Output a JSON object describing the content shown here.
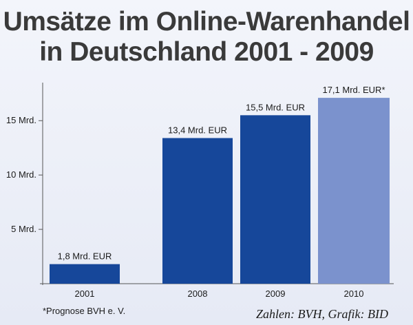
{
  "title": {
    "line1": "Umsätze im Online-Warenhandel",
    "line2": "in Deutschland 2001 - 2009"
  },
  "chart_data": {
    "type": "bar",
    "categories": [
      "2001",
      "2008",
      "2009",
      "2010"
    ],
    "values": [
      1.8,
      13.4,
      15.5,
      17.1
    ],
    "value_labels": [
      "1,8 Mrd. EUR",
      "13,4 Mrd. EUR",
      "15,5 Mrd. EUR",
      "17,1 Mrd. EUR*"
    ],
    "ylim": [
      0,
      18.5
    ],
    "yticks": [
      {
        "value": 5,
        "label": "5 Mrd."
      },
      {
        "value": 10,
        "label": "10 Mrd."
      },
      {
        "value": 15,
        "label": "15 Mrd."
      }
    ],
    "bar_colors": [
      "#16479a",
      "#16479a",
      "#16479a",
      "#7b92cd"
    ],
    "grid": false,
    "xlabel": "",
    "ylabel": ""
  },
  "footnote": "*Prognose BVH e. V.",
  "source": "Zahlen: BVH, Grafik: BID"
}
